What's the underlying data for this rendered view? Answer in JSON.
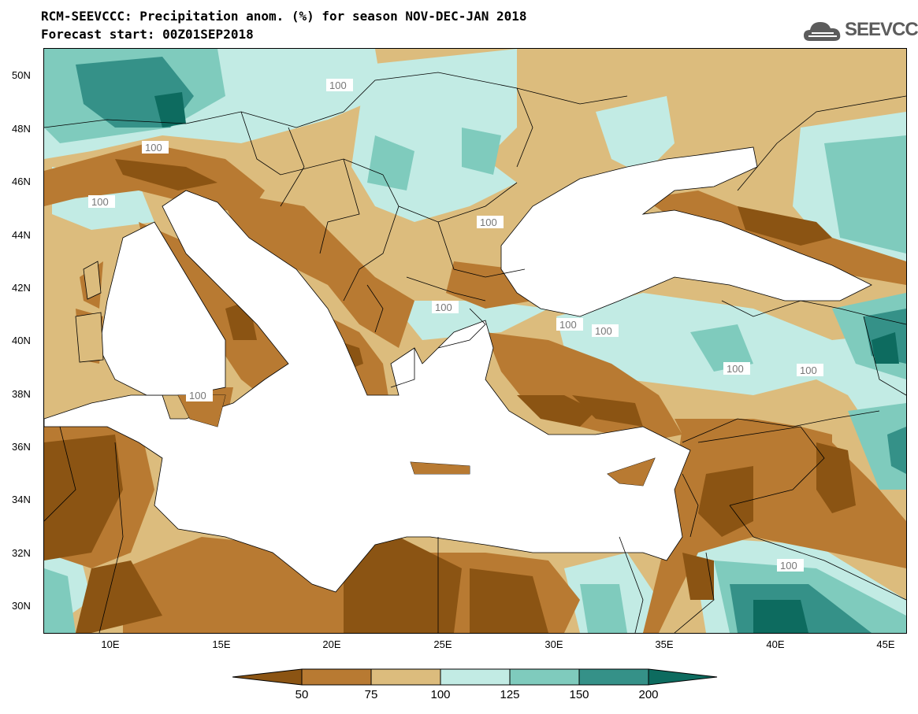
{
  "header": {
    "title": "RCM-SEEVCCC: Precipitation anom. (%) for season NOV-DEC-JAN 2018",
    "subtitle": "Forecast start: 00Z01SEP2018",
    "logo_text": "SEEVCCC"
  },
  "map": {
    "latitude_labels": [
      "50N",
      "48N",
      "46N",
      "44N",
      "42N",
      "40N",
      "38N",
      "36N",
      "34N",
      "32N",
      "30N"
    ],
    "longitude_labels": [
      "10E",
      "15E",
      "20E",
      "25E",
      "30E",
      "35E",
      "40E",
      "45E"
    ],
    "contour_labels": [
      "100",
      "100",
      "100",
      "100",
      "100",
      "100",
      "100",
      "100",
      "100",
      "100",
      "100",
      "100",
      "100"
    ]
  },
  "legend": {
    "tick_labels": [
      "50",
      "75",
      "100",
      "125",
      "150",
      "200"
    ],
    "colors": [
      "#8b5413",
      "#b87a32",
      "#dcbc7d",
      "#c2ebe4",
      "#7fcbbd",
      "#359188",
      "#0d6b5f"
    ]
  }
}
